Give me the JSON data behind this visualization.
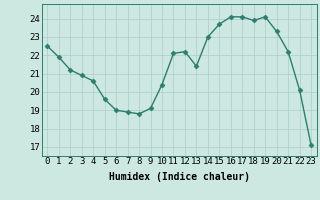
{
  "x": [
    0,
    1,
    2,
    3,
    4,
    5,
    6,
    7,
    8,
    9,
    10,
    11,
    12,
    13,
    14,
    15,
    16,
    17,
    18,
    19,
    20,
    21,
    22,
    23
  ],
  "y": [
    22.5,
    21.9,
    21.2,
    20.9,
    20.6,
    19.6,
    19.0,
    18.9,
    18.8,
    19.1,
    20.4,
    22.1,
    22.2,
    21.4,
    23.0,
    23.7,
    24.1,
    24.1,
    23.9,
    24.1,
    23.3,
    22.2,
    20.1,
    17.1
  ],
  "line_color": "#2e7d6e",
  "marker": "D",
  "markersize": 2.5,
  "linewidth": 1.0,
  "bg_color": "#cce8e0",
  "grid_color": "#aacfc8",
  "xlabel": "Humidex (Indice chaleur)",
  "xlabel_fontsize": 7,
  "tick_fontsize": 6.5,
  "ylim": [
    16.5,
    24.8
  ],
  "yticks": [
    17,
    18,
    19,
    20,
    21,
    22,
    23,
    24
  ],
  "xticks": [
    0,
    1,
    2,
    3,
    4,
    5,
    6,
    7,
    8,
    9,
    10,
    11,
    12,
    13,
    14,
    15,
    16,
    17,
    18,
    19,
    20,
    21,
    22,
    23
  ]
}
